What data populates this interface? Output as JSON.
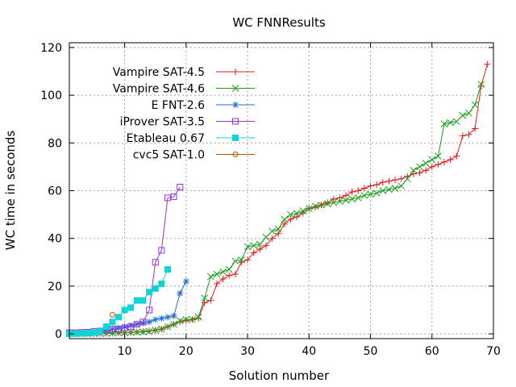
{
  "chart_data": {
    "type": "line",
    "title": "WC FNNResults",
    "xlabel": "Solution number",
    "ylabel": "WC time in seconds",
    "xlim": [
      1,
      70
    ],
    "ylim": [
      -2,
      122
    ],
    "xticks": [
      10,
      20,
      30,
      40,
      50,
      60,
      70
    ],
    "yticks": [
      0,
      20,
      40,
      60,
      80,
      100,
      120
    ],
    "grid": true,
    "legend_position": "top-left",
    "series": [
      {
        "name": "Vampire SAT-4.5",
        "color": "#e31a1c",
        "marker": "plus",
        "x": [
          1,
          2,
          3,
          4,
          5,
          6,
          7,
          8,
          9,
          10,
          11,
          12,
          13,
          14,
          15,
          16,
          17,
          18,
          19,
          20,
          21,
          22,
          23,
          24,
          25,
          26,
          27,
          28,
          29,
          30,
          31,
          32,
          33,
          34,
          35,
          36,
          37,
          38,
          39,
          40,
          41,
          42,
          43,
          44,
          45,
          46,
          47,
          48,
          49,
          50,
          51,
          52,
          53,
          54,
          55,
          56,
          57,
          58,
          59,
          60,
          61,
          62,
          63,
          64,
          65,
          66,
          67,
          68,
          69
        ],
        "values": [
          0.1,
          0.1,
          0.1,
          0.1,
          0.1,
          0.2,
          0.2,
          0.3,
          0.4,
          0.5,
          0.6,
          0.8,
          1.0,
          1.2,
          1.5,
          2.0,
          3.0,
          4.0,
          5.0,
          5.5,
          6.0,
          6.5,
          13.0,
          14.0,
          21.0,
          23.0,
          24.5,
          25.0,
          30.0,
          31.0,
          34.0,
          35.5,
          37.0,
          40.0,
          42.0,
          46.0,
          48.0,
          49.0,
          50.5,
          52.5,
          53.0,
          54.0,
          55.0,
          56.5,
          57.0,
          58.0,
          59.5,
          60.0,
          61.0,
          62.0,
          62.5,
          63.5,
          64.0,
          64.5,
          65.0,
          66.0,
          67.0,
          67.5,
          68.5,
          70.0,
          71.0,
          72.0,
          73.0,
          74.5,
          83.0,
          83.5,
          86.0,
          104.0,
          113.0
        ]
      },
      {
        "name": "Vampire SAT-4.6",
        "color": "#1a9e1a",
        "marker": "x",
        "x": [
          1,
          2,
          3,
          4,
          5,
          6,
          7,
          8,
          9,
          10,
          11,
          12,
          13,
          14,
          15,
          16,
          17,
          18,
          19,
          20,
          21,
          22,
          23,
          24,
          25,
          26,
          27,
          28,
          29,
          30,
          31,
          32,
          33,
          34,
          35,
          36,
          37,
          38,
          39,
          40,
          41,
          42,
          43,
          44,
          45,
          46,
          47,
          48,
          49,
          50,
          51,
          52,
          53,
          54,
          55,
          56,
          57,
          58,
          59,
          60,
          61,
          62,
          63,
          64,
          65,
          66,
          67,
          68
        ],
        "values": [
          0.1,
          0.1,
          0.1,
          0.1,
          0.2,
          0.2,
          0.2,
          0.3,
          0.4,
          0.5,
          0.6,
          0.7,
          0.8,
          1.0,
          1.5,
          2.0,
          3.0,
          4.0,
          5.5,
          6.0,
          6.0,
          7.0,
          15.0,
          24.0,
          25.0,
          26.0,
          27.0,
          30.5,
          31.0,
          36.5,
          37.0,
          37.5,
          40.5,
          43.0,
          44.0,
          48.0,
          50.0,
          50.5,
          51.5,
          52.5,
          53.5,
          54.0,
          54.5,
          55.0,
          55.5,
          56.0,
          56.5,
          57.0,
          58.0,
          58.5,
          59.0,
          60.0,
          60.5,
          61.0,
          62.0,
          65.0,
          68.5,
          70.0,
          71.5,
          73.0,
          74.5,
          88.0,
          88.5,
          89.0,
          91.5,
          92.5,
          96.0,
          104.5
        ]
      },
      {
        "name": "E FNT-2.6",
        "color": "#1f6fd1",
        "marker": "star",
        "x": [
          1,
          2,
          3,
          4,
          5,
          6,
          7,
          8,
          9,
          10,
          11,
          12,
          13,
          14,
          15,
          16,
          17,
          18,
          19,
          20
        ],
        "values": [
          0.2,
          0.3,
          0.4,
          0.5,
          0.8,
          1.0,
          1.5,
          2.0,
          2.5,
          3.0,
          3.5,
          4.0,
          4.5,
          5.0,
          6.0,
          6.5,
          7.0,
          7.5,
          17.0,
          22.0
        ]
      },
      {
        "name": "iProver SAT-3.5",
        "color": "#9b30d9",
        "marker": "open-square",
        "x": [
          1,
          2,
          3,
          4,
          5,
          6,
          7,
          8,
          9,
          10,
          11,
          12,
          13,
          14,
          15,
          16,
          17,
          18,
          19
        ],
        "values": [
          0.5,
          0.5,
          0.6,
          0.7,
          1.0,
          1.2,
          1.5,
          2.0,
          2.0,
          2.5,
          3.0,
          4.0,
          5.0,
          10.0,
          30.0,
          35.0,
          57.0,
          57.5,
          61.5
        ]
      },
      {
        "name": "Etableau 0.67",
        "color": "#11d4d4",
        "marker": "filled-square",
        "x": [
          1,
          2,
          3,
          4,
          5,
          6,
          7,
          8,
          9,
          10,
          11,
          12,
          13,
          14,
          15,
          16,
          17
        ],
        "values": [
          0.1,
          0.1,
          0.2,
          0.3,
          0.5,
          1.0,
          3.0,
          5.0,
          7.0,
          10.0,
          11.0,
          14.0,
          14.0,
          17.5,
          19.0,
          21.0,
          27.0
        ]
      },
      {
        "name": "cvc5 SAT-1.0",
        "color": "#b35900",
        "marker": "open-circle",
        "x": [
          8
        ],
        "values": [
          8.0
        ]
      }
    ]
  }
}
